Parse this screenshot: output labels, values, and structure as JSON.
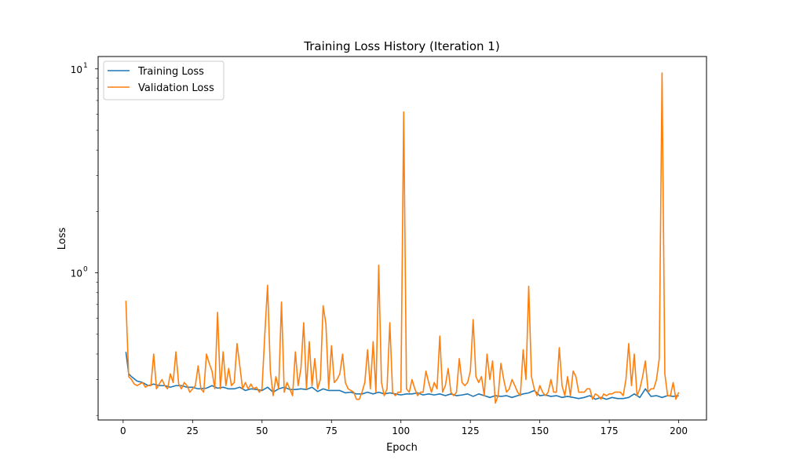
{
  "chart_data": {
    "type": "line",
    "title": "Training Loss History (Iteration 1)",
    "xlabel": "Epoch",
    "ylabel": "Loss",
    "yscale": "log",
    "xlim": [
      -9,
      210
    ],
    "ylim": [
      0.19,
      11.5
    ],
    "xticks": [
      0,
      25,
      50,
      75,
      100,
      125,
      150,
      175,
      200
    ],
    "yticks": [
      {
        "value": 1,
        "label": "10",
        "exp": "0"
      },
      {
        "value": 10,
        "label": "10",
        "exp": "1"
      }
    ],
    "grid": false,
    "legend": "top-left",
    "series": [
      {
        "name": "Training Loss",
        "color": "#1f77b4",
        "points": [
          [
            1,
            0.41
          ],
          [
            2,
            0.32
          ],
          [
            3,
            0.31
          ],
          [
            5,
            0.295
          ],
          [
            7,
            0.29
          ],
          [
            9,
            0.28
          ],
          [
            11,
            0.285
          ],
          [
            13,
            0.28
          ],
          [
            15,
            0.28
          ],
          [
            17,
            0.275
          ],
          [
            19,
            0.28
          ],
          [
            21,
            0.28
          ],
          [
            23,
            0.275
          ],
          [
            25,
            0.275
          ],
          [
            27,
            0.27
          ],
          [
            30,
            0.272
          ],
          [
            32,
            0.28
          ],
          [
            34,
            0.272
          ],
          [
            36,
            0.275
          ],
          [
            38,
            0.27
          ],
          [
            40,
            0.27
          ],
          [
            42,
            0.275
          ],
          [
            44,
            0.265
          ],
          [
            46,
            0.27
          ],
          [
            48,
            0.268
          ],
          [
            50,
            0.265
          ],
          [
            52,
            0.275
          ],
          [
            54,
            0.26
          ],
          [
            56,
            0.27
          ],
          [
            58,
            0.275
          ],
          [
            60,
            0.268
          ],
          [
            62,
            0.268
          ],
          [
            64,
            0.27
          ],
          [
            66,
            0.268
          ],
          [
            68,
            0.275
          ],
          [
            70,
            0.262
          ],
          [
            72,
            0.27
          ],
          [
            74,
            0.265
          ],
          [
            76,
            0.265
          ],
          [
            78,
            0.265
          ],
          [
            80,
            0.258
          ],
          [
            82,
            0.26
          ],
          [
            84,
            0.255
          ],
          [
            86,
            0.255
          ],
          [
            88,
            0.26
          ],
          [
            90,
            0.255
          ],
          [
            92,
            0.26
          ],
          [
            94,
            0.255
          ],
          [
            96,
            0.258
          ],
          [
            98,
            0.255
          ],
          [
            100,
            0.252
          ],
          [
            102,
            0.255
          ],
          [
            104,
            0.255
          ],
          [
            106,
            0.258
          ],
          [
            108,
            0.252
          ],
          [
            110,
            0.255
          ],
          [
            112,
            0.252
          ],
          [
            114,
            0.255
          ],
          [
            116,
            0.25
          ],
          [
            118,
            0.255
          ],
          [
            120,
            0.25
          ],
          [
            122,
            0.252
          ],
          [
            124,
            0.255
          ],
          [
            126,
            0.248
          ],
          [
            128,
            0.255
          ],
          [
            130,
            0.25
          ],
          [
            132,
            0.245
          ],
          [
            134,
            0.25
          ],
          [
            136,
            0.248
          ],
          [
            138,
            0.25
          ],
          [
            140,
            0.245
          ],
          [
            142,
            0.25
          ],
          [
            144,
            0.255
          ],
          [
            146,
            0.258
          ],
          [
            148,
            0.265
          ],
          [
            150,
            0.25
          ],
          [
            152,
            0.252
          ],
          [
            154,
            0.248
          ],
          [
            156,
            0.25
          ],
          [
            158,
            0.245
          ],
          [
            160,
            0.248
          ],
          [
            162,
            0.245
          ],
          [
            164,
            0.242
          ],
          [
            166,
            0.245
          ],
          [
            168,
            0.25
          ],
          [
            170,
            0.24
          ],
          [
            172,
            0.245
          ],
          [
            174,
            0.24
          ],
          [
            176,
            0.245
          ],
          [
            178,
            0.242
          ],
          [
            180,
            0.242
          ],
          [
            182,
            0.245
          ],
          [
            184,
            0.255
          ],
          [
            186,
            0.245
          ],
          [
            188,
            0.27
          ],
          [
            190,
            0.248
          ],
          [
            192,
            0.25
          ],
          [
            194,
            0.245
          ],
          [
            196,
            0.25
          ],
          [
            198,
            0.248
          ],
          [
            200,
            0.25
          ]
        ]
      },
      {
        "name": "Validation Loss",
        "color": "#ff7f0e",
        "points": [
          [
            1,
            0.73
          ],
          [
            2,
            0.31
          ],
          [
            3,
            0.3
          ],
          [
            4,
            0.285
          ],
          [
            5,
            0.28
          ],
          [
            6,
            0.285
          ],
          [
            7,
            0.29
          ],
          [
            8,
            0.275
          ],
          [
            9,
            0.28
          ],
          [
            10,
            0.28
          ],
          [
            11,
            0.4
          ],
          [
            12,
            0.27
          ],
          [
            13,
            0.285
          ],
          [
            14,
            0.3
          ],
          [
            15,
            0.28
          ],
          [
            16,
            0.27
          ],
          [
            17,
            0.32
          ],
          [
            18,
            0.29
          ],
          [
            19,
            0.41
          ],
          [
            20,
            0.285
          ],
          [
            21,
            0.27
          ],
          [
            22,
            0.29
          ],
          [
            23,
            0.28
          ],
          [
            24,
            0.26
          ],
          [
            25,
            0.27
          ],
          [
            26,
            0.28
          ],
          [
            27,
            0.35
          ],
          [
            28,
            0.27
          ],
          [
            29,
            0.26
          ],
          [
            30,
            0.4
          ],
          [
            31,
            0.36
          ],
          [
            32,
            0.33
          ],
          [
            33,
            0.27
          ],
          [
            34,
            0.64
          ],
          [
            35,
            0.27
          ],
          [
            36,
            0.41
          ],
          [
            37,
            0.28
          ],
          [
            38,
            0.34
          ],
          [
            39,
            0.28
          ],
          [
            40,
            0.29
          ],
          [
            41,
            0.45
          ],
          [
            42,
            0.35
          ],
          [
            43,
            0.27
          ],
          [
            44,
            0.29
          ],
          [
            45,
            0.27
          ],
          [
            46,
            0.285
          ],
          [
            47,
            0.27
          ],
          [
            48,
            0.275
          ],
          [
            49,
            0.26
          ],
          [
            50,
            0.27
          ],
          [
            51,
            0.5
          ],
          [
            52,
            0.87
          ],
          [
            53,
            0.33
          ],
          [
            54,
            0.25
          ],
          [
            55,
            0.31
          ],
          [
            56,
            0.27
          ],
          [
            57,
            0.72
          ],
          [
            58,
            0.26
          ],
          [
            59,
            0.29
          ],
          [
            60,
            0.27
          ],
          [
            61,
            0.25
          ],
          [
            62,
            0.41
          ],
          [
            63,
            0.28
          ],
          [
            64,
            0.34
          ],
          [
            65,
            0.57
          ],
          [
            66,
            0.27
          ],
          [
            67,
            0.46
          ],
          [
            68,
            0.28
          ],
          [
            69,
            0.38
          ],
          [
            70,
            0.27
          ],
          [
            71,
            0.3
          ],
          [
            72,
            0.69
          ],
          [
            73,
            0.56
          ],
          [
            74,
            0.27
          ],
          [
            75,
            0.44
          ],
          [
            76,
            0.29
          ],
          [
            77,
            0.3
          ],
          [
            78,
            0.32
          ],
          [
            79,
            0.4
          ],
          [
            80,
            0.29
          ],
          [
            81,
            0.27
          ],
          [
            82,
            0.265
          ],
          [
            83,
            0.26
          ],
          [
            84,
            0.24
          ],
          [
            85,
            0.24
          ],
          [
            86,
            0.26
          ],
          [
            87,
            0.29
          ],
          [
            88,
            0.42
          ],
          [
            89,
            0.27
          ],
          [
            90,
            0.46
          ],
          [
            91,
            0.26
          ],
          [
            92,
            1.09
          ],
          [
            93,
            0.29
          ],
          [
            94,
            0.25
          ],
          [
            95,
            0.27
          ],
          [
            96,
            0.57
          ],
          [
            97,
            0.26
          ],
          [
            98,
            0.25
          ],
          [
            99,
            0.26
          ],
          [
            100,
            0.26
          ],
          [
            101,
            6.15
          ],
          [
            102,
            0.27
          ],
          [
            103,
            0.26
          ],
          [
            104,
            0.3
          ],
          [
            105,
            0.27
          ],
          [
            106,
            0.25
          ],
          [
            107,
            0.26
          ],
          [
            108,
            0.26
          ],
          [
            109,
            0.33
          ],
          [
            110,
            0.29
          ],
          [
            111,
            0.26
          ],
          [
            112,
            0.29
          ],
          [
            113,
            0.27
          ],
          [
            114,
            0.49
          ],
          [
            115,
            0.26
          ],
          [
            116,
            0.28
          ],
          [
            117,
            0.34
          ],
          [
            118,
            0.26
          ],
          [
            119,
            0.25
          ],
          [
            120,
            0.26
          ],
          [
            121,
            0.38
          ],
          [
            122,
            0.29
          ],
          [
            123,
            0.28
          ],
          [
            124,
            0.29
          ],
          [
            125,
            0.33
          ],
          [
            126,
            0.59
          ],
          [
            127,
            0.31
          ],
          [
            128,
            0.29
          ],
          [
            129,
            0.31
          ],
          [
            130,
            0.25
          ],
          [
            131,
            0.4
          ],
          [
            132,
            0.3
          ],
          [
            133,
            0.37
          ],
          [
            134,
            0.23
          ],
          [
            135,
            0.25
          ],
          [
            136,
            0.36
          ],
          [
            137,
            0.3
          ],
          [
            138,
            0.26
          ],
          [
            139,
            0.27
          ],
          [
            140,
            0.3
          ],
          [
            141,
            0.28
          ],
          [
            142,
            0.26
          ],
          [
            143,
            0.25
          ],
          [
            144,
            0.42
          ],
          [
            145,
            0.3
          ],
          [
            146,
            0.86
          ],
          [
            147,
            0.31
          ],
          [
            148,
            0.27
          ],
          [
            149,
            0.25
          ],
          [
            150,
            0.28
          ],
          [
            151,
            0.26
          ],
          [
            152,
            0.25
          ],
          [
            153,
            0.26
          ],
          [
            154,
            0.3
          ],
          [
            155,
            0.26
          ],
          [
            156,
            0.26
          ],
          [
            157,
            0.43
          ],
          [
            158,
            0.28
          ],
          [
            159,
            0.25
          ],
          [
            160,
            0.31
          ],
          [
            161,
            0.25
          ],
          [
            162,
            0.33
          ],
          [
            163,
            0.31
          ],
          [
            164,
            0.26
          ],
          [
            165,
            0.26
          ],
          [
            166,
            0.26
          ],
          [
            167,
            0.27
          ],
          [
            168,
            0.27
          ],
          [
            169,
            0.24
          ],
          [
            170,
            0.255
          ],
          [
            171,
            0.25
          ],
          [
            172,
            0.24
          ],
          [
            173,
            0.255
          ],
          [
            174,
            0.25
          ],
          [
            175,
            0.255
          ],
          [
            176,
            0.255
          ],
          [
            177,
            0.26
          ],
          [
            178,
            0.26
          ],
          [
            179,
            0.26
          ],
          [
            180,
            0.25
          ],
          [
            181,
            0.3
          ],
          [
            182,
            0.45
          ],
          [
            183,
            0.28
          ],
          [
            184,
            0.4
          ],
          [
            185,
            0.25
          ],
          [
            186,
            0.27
          ],
          [
            187,
            0.31
          ],
          [
            188,
            0.37
          ],
          [
            189,
            0.26
          ],
          [
            190,
            0.27
          ],
          [
            191,
            0.27
          ],
          [
            192,
            0.3
          ],
          [
            193,
            0.38
          ],
          [
            194,
            9.55
          ],
          [
            195,
            0.32
          ],
          [
            196,
            0.25
          ],
          [
            197,
            0.25
          ],
          [
            198,
            0.29
          ],
          [
            199,
            0.24
          ],
          [
            200,
            0.26
          ]
        ]
      }
    ]
  }
}
